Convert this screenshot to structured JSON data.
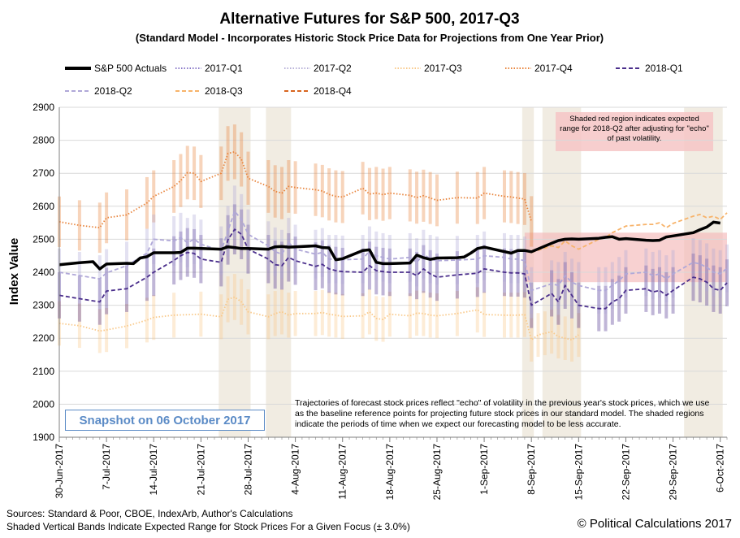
{
  "header": {
    "title": "Alternative Futures for S&P 500, 2017-Q3",
    "subtitle": "(Standard Model - Incorporates Historic Stock Price Data for Projections from One Year Prior)"
  },
  "legend": [
    {
      "label": "S&P 500 Actuals",
      "color": "#000000",
      "style": "solid-thick"
    },
    {
      "label": "2017-Q1",
      "color": "#8a78c8",
      "style": "dotted"
    },
    {
      "label": "2017-Q2",
      "color": "#b8b2d8",
      "style": "dotted"
    },
    {
      "label": "2017-Q3",
      "color": "#f9c98a",
      "style": "dotted"
    },
    {
      "label": "2017-Q4",
      "color": "#e8843c",
      "style": "dotted"
    },
    {
      "label": "2018-Q1",
      "color": "#4b2f8c",
      "style": "dashed"
    },
    {
      "label": "2018-Q2",
      "color": "#b0a8d8",
      "style": "dashed"
    },
    {
      "label": "2018-Q3",
      "color": "#f7b36a",
      "style": "dashed"
    },
    {
      "label": "2018-Q4",
      "color": "#d8641e",
      "style": "dashed"
    }
  ],
  "annotations": {
    "snapshot": "Snapshot on 06 October 2017",
    "trajectory_note": "Trajectories of forecast stock prices reflect \"echo\" of volatility in  the previous year's stock prices, which we use as the baseline reference points for projecting future stock prices in our standard model.   The shaded regions indicate the periods of time when we expect our forecasting model to be less accurate.",
    "red_region_note": "Shaded red region indicates expected range for 2018-Q2  after adjusting for \"echo\" of past volatility."
  },
  "footer": {
    "sources": "Sources: Standard & Poor, CBOE, IndexArb, Author's Calculations",
    "bands_note": "Shaded Vertical Bands Indicate Expected Range for Stock Prices For a Given Focus (± 3.0%)",
    "copyright": "© Political Calculations 2017"
  },
  "chart_data": {
    "type": "line",
    "title": "Alternative Futures for S&P 500, 2017-Q3",
    "xlabel": "",
    "ylabel": "Index Value",
    "ylim": [
      1900,
      2900
    ],
    "yticks": [
      1900,
      2000,
      2100,
      2200,
      2300,
      2400,
      2500,
      2600,
      2700,
      2800,
      2900
    ],
    "xlim_days": [
      0,
      99
    ],
    "xticks": [
      {
        "day": 0,
        "label": "30-Jun-2017"
      },
      {
        "day": 7,
        "label": "7-Jul-2017"
      },
      {
        "day": 14,
        "label": "14-Jul-2017"
      },
      {
        "day": 21,
        "label": "21-Jul-2017"
      },
      {
        "day": 28,
        "label": "28-Jul-2017"
      },
      {
        "day": 35,
        "label": "4-Aug-2017"
      },
      {
        "day": 42,
        "label": "11-Aug-2017"
      },
      {
        "day": 49,
        "label": "18-Aug-2017"
      },
      {
        "day": 56,
        "label": "25-Aug-2017"
      },
      {
        "day": 63,
        "label": "1-Sep-2017"
      },
      {
        "day": 70,
        "label": "8-Sep-2017"
      },
      {
        "day": 77,
        "label": "15-Sep-2017"
      },
      {
        "day": 84,
        "label": "22-Sep-2017"
      },
      {
        "day": 91,
        "label": "29-Sep-2017"
      },
      {
        "day": 98,
        "label": "6-Oct-2017"
      }
    ],
    "shaded_day_ranges": [
      [
        24,
        28
      ],
      [
        31,
        34
      ],
      [
        69,
        70
      ],
      [
        72,
        77
      ],
      [
        93,
        98
      ]
    ],
    "red_region": {
      "day_start": 69,
      "day_end": 99,
      "y_low": 2370,
      "y_high": 2520
    },
    "band_fraction": 0.03,
    "band_series": [
      "2017-Q3",
      "2017-Q4",
      "2018-Q1",
      "2018-Q2"
    ],
    "series": [
      {
        "name": "S&P 500 Actuals",
        "days": [
          0,
          3,
          5,
          6,
          7,
          10,
          11,
          12,
          13,
          14,
          17,
          18,
          19,
          20,
          21,
          24,
          25,
          26,
          27,
          28,
          31,
          32,
          33,
          34,
          35,
          38,
          39,
          40,
          41,
          42,
          45,
          46,
          47,
          48,
          49,
          52,
          53,
          54,
          55,
          56,
          59,
          60,
          61,
          62,
          63,
          67,
          68,
          69,
          70,
          73,
          74,
          75,
          76,
          77,
          80,
          81,
          82,
          83,
          84,
          87,
          88,
          89,
          90,
          91,
          94,
          95,
          96,
          97,
          98
        ],
        "values": [
          2423,
          2429,
          2432,
          2410,
          2425,
          2427,
          2426,
          2443,
          2447,
          2459,
          2459,
          2460,
          2473,
          2473,
          2472,
          2470,
          2477,
          2475,
          2472,
          2472,
          2470,
          2477,
          2478,
          2476,
          2477,
          2480,
          2475,
          2474,
          2438,
          2441,
          2466,
          2468,
          2430,
          2426,
          2426,
          2428,
          2452,
          2444,
          2439,
          2443,
          2444,
          2446,
          2458,
          2472,
          2476,
          2458,
          2466,
          2466,
          2462,
          2488,
          2496,
          2500,
          2501,
          2500,
          2503,
          2506,
          2508,
          2500,
          2502,
          2497,
          2496,
          2497,
          2507,
          2510,
          2520,
          2529,
          2537,
          2552,
          2549
        ]
      },
      {
        "name": "2017-Q3",
        "days": [
          0,
          3,
          6,
          7,
          10,
          13,
          14,
          17,
          21,
          24,
          25,
          26,
          27,
          28,
          31,
          32,
          33,
          34,
          35,
          38,
          39,
          40,
          41,
          42,
          45,
          46,
          47,
          48,
          49,
          52,
          53,
          54,
          55,
          56,
          59,
          62,
          63,
          66,
          67,
          68,
          69,
          70,
          71,
          72,
          73,
          74,
          75,
          76,
          77
        ],
        "values": [
          2245,
          2238,
          2222,
          2225,
          2237,
          2255,
          2263,
          2270,
          2273,
          2265,
          2318,
          2325,
          2310,
          2280,
          2265,
          2275,
          2280,
          2270,
          2275,
          2275,
          2278,
          2273,
          2270,
          2266,
          2268,
          2280,
          2260,
          2257,
          2273,
          2268,
          2276,
          2275,
          2270,
          2268,
          2275,
          2286,
          2272,
          2270,
          2270,
          2270,
          2272,
          2195,
          2210,
          2215,
          2220,
          2205,
          2200,
          2195,
          2210
        ]
      },
      {
        "name": "2017-Q4",
        "days": [
          0,
          3,
          6,
          7,
          10,
          13,
          14,
          17,
          18,
          19,
          20,
          21,
          24,
          25,
          26,
          27,
          28,
          31,
          32,
          33,
          34,
          35,
          38,
          39,
          40,
          41,
          42,
          45,
          46,
          47,
          48,
          49,
          52,
          53,
          54,
          55,
          56,
          59,
          62,
          63,
          66,
          67,
          68,
          69,
          70
        ],
        "values": [
          2553,
          2542,
          2535,
          2565,
          2574,
          2610,
          2630,
          2660,
          2678,
          2702,
          2700,
          2675,
          2700,
          2760,
          2765,
          2742,
          2685,
          2660,
          2645,
          2640,
          2660,
          2657,
          2650,
          2646,
          2636,
          2630,
          2628,
          2655,
          2637,
          2640,
          2635,
          2640,
          2633,
          2626,
          2632,
          2625,
          2618,
          2626,
          2625,
          2640,
          2630,
          2628,
          2625,
          2622,
          2554
        ]
      },
      {
        "name": "2018-Q1",
        "days": [
          0,
          3,
          6,
          7,
          10,
          13,
          14,
          17,
          18,
          19,
          20,
          21,
          24,
          25,
          26,
          27,
          28,
          31,
          32,
          33,
          34,
          35,
          38,
          39,
          40,
          41,
          42,
          45,
          46,
          47,
          48,
          49,
          52,
          53,
          54,
          55,
          56,
          59,
          62,
          63,
          66,
          67,
          68,
          69,
          70,
          73,
          74,
          75,
          76,
          77,
          80,
          81,
          82,
          83,
          84,
          87,
          88,
          89,
          90,
          91,
          94,
          95,
          96,
          97,
          98,
          99
        ],
        "values": [
          2330,
          2320,
          2310,
          2343,
          2350,
          2385,
          2400,
          2436,
          2450,
          2460,
          2457,
          2440,
          2430,
          2498,
          2530,
          2515,
          2470,
          2440,
          2423,
          2420,
          2445,
          2435,
          2418,
          2424,
          2410,
          2405,
          2402,
          2400,
          2420,
          2405,
          2402,
          2400,
          2400,
          2390,
          2410,
          2395,
          2385,
          2392,
          2397,
          2410,
          2400,
          2398,
          2398,
          2395,
          2300,
          2336,
          2310,
          2360,
          2330,
          2300,
          2290,
          2290,
          2310,
          2320,
          2345,
          2350,
          2340,
          2345,
          2330,
          2345,
          2385,
          2380,
          2370,
          2350,
          2345,
          2368
        ]
      },
      {
        "name": "2018-Q2",
        "days": [
          0,
          3,
          6,
          7,
          10,
          13,
          14,
          17,
          18,
          19,
          20,
          21,
          24,
          25,
          26,
          27,
          28,
          31,
          32,
          33,
          34,
          35,
          38,
          39,
          40,
          41,
          42,
          45,
          46,
          47,
          48,
          49,
          52,
          53,
          54,
          55,
          56,
          59,
          62,
          63,
          66,
          67,
          68,
          69,
          70,
          73,
          74,
          75,
          76,
          77,
          80,
          81,
          82,
          83,
          84,
          87,
          88,
          89,
          90,
          91,
          94,
          95,
          96,
          97,
          98,
          99
        ],
        "values": [
          2400,
          2390,
          2380,
          2398,
          2420,
          2458,
          2500,
          2495,
          2505,
          2490,
          2500,
          2485,
          2465,
          2525,
          2585,
          2560,
          2515,
          2480,
          2462,
          2455,
          2490,
          2470,
          2455,
          2460,
          2440,
          2440,
          2438,
          2440,
          2465,
          2450,
          2445,
          2440,
          2445,
          2430,
          2455,
          2440,
          2435,
          2437,
          2440,
          2450,
          2445,
          2440,
          2440,
          2435,
          2345,
          2365,
          2360,
          2390,
          2370,
          2360,
          2345,
          2345,
          2360,
          2375,
          2395,
          2400,
          2390,
          2395,
          2380,
          2395,
          2430,
          2425,
          2415,
          2400,
          2395,
          2412
        ]
      },
      {
        "name": "2018-Q3",
        "days": [
          70,
          73,
          74,
          75,
          76,
          77,
          80,
          81,
          82,
          83,
          84,
          87,
          88,
          89,
          90,
          91,
          94,
          95,
          96,
          97,
          98,
          99
        ],
        "values": [
          2460,
          2480,
          2475,
          2495,
          2480,
          2470,
          2500,
          2505,
          2520,
          2530,
          2540,
          2545,
          2545,
          2550,
          2535,
          2548,
          2570,
          2575,
          2565,
          2570,
          2560,
          2580
        ]
      }
    ]
  }
}
